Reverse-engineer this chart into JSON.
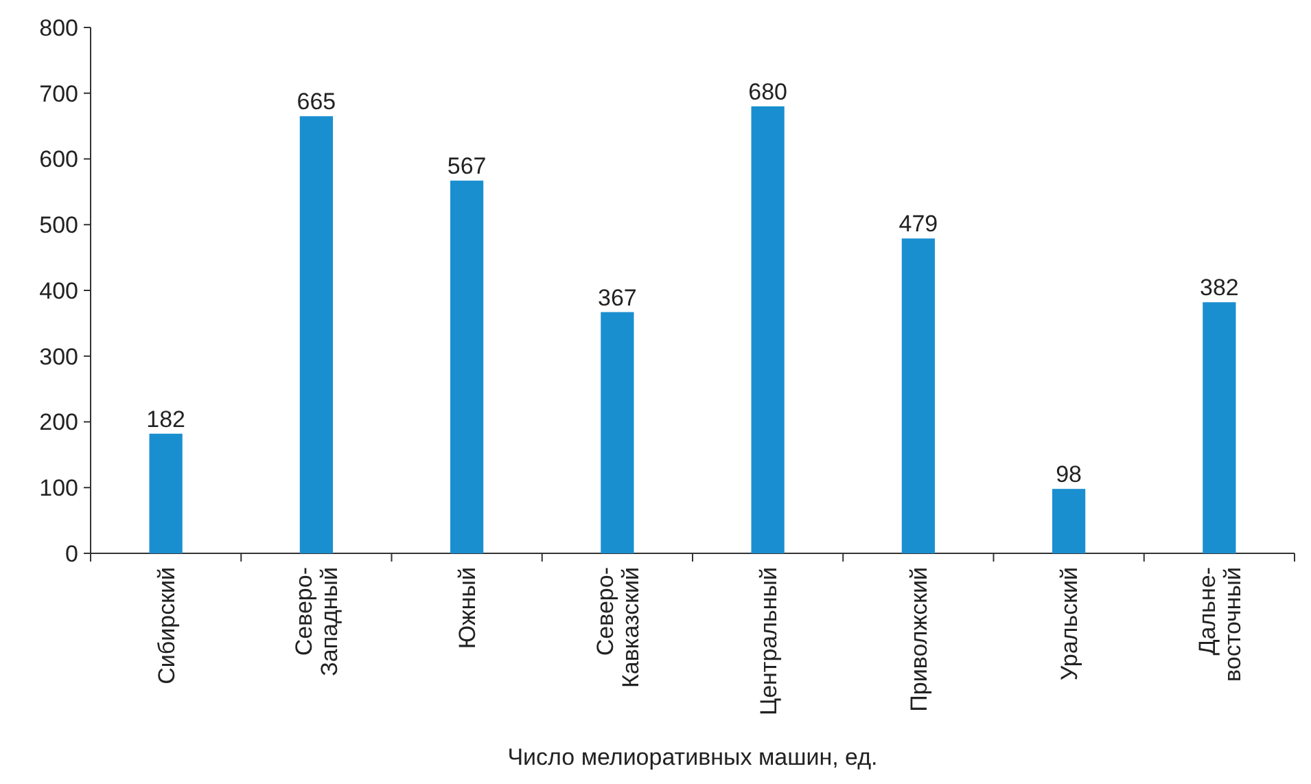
{
  "chart_data": {
    "type": "bar",
    "xlabel": "Число мелиоративных машин, ед.",
    "categories": [
      "Сибирский",
      "Северо-Западный",
      "Южный",
      "Северо-Кавказский",
      "Центральный",
      "Приволжский",
      "Уральский",
      "Дальне-восточный"
    ],
    "values": [
      182,
      665,
      567,
      367,
      680,
      479,
      98,
      382
    ],
    "color": "#1a8fd0",
    "ylim": [
      0,
      800
    ],
    "yticks": [
      0,
      100,
      200,
      300,
      400,
      500,
      600,
      700,
      800
    ],
    "data_labels": true
  }
}
